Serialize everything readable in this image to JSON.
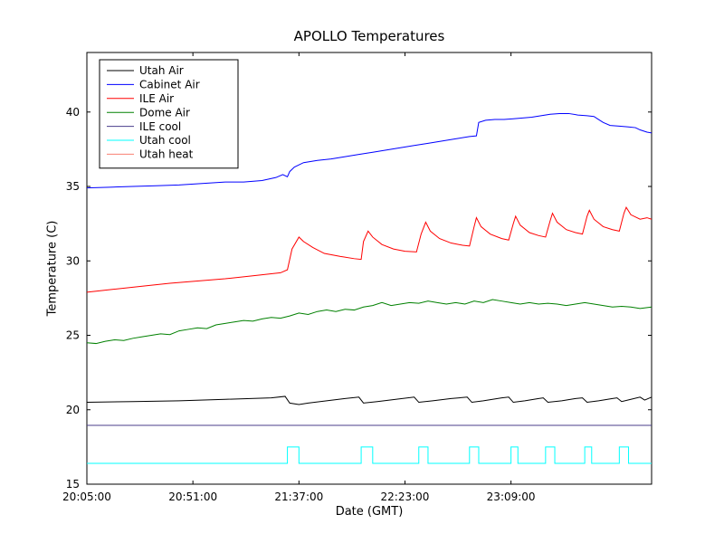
{
  "figure": {
    "title": "APOLLO Temperatures",
    "xlabel": "Date (GMT)",
    "ylabel": "Temperature (C)"
  },
  "chart_data": {
    "type": "line",
    "title": "APOLLO Temperatures",
    "xlabel": "Date (GMT)",
    "ylabel": "Temperature (C)",
    "x_unit": "minutes after 20:05:00",
    "xlim": [
      0,
      245
    ],
    "ylim": [
      15,
      44
    ],
    "xticks": [
      {
        "value": 0,
        "label": "20:05:00"
      },
      {
        "value": 46,
        "label": "20:51:00"
      },
      {
        "value": 92,
        "label": "21:37:00"
      },
      {
        "value": 138,
        "label": "22:23:00"
      },
      {
        "value": 184,
        "label": "23:09:00"
      }
    ],
    "yticks": [
      15,
      20,
      25,
      30,
      35,
      40
    ],
    "grid": false,
    "legend_position": "upper-left",
    "series": [
      {
        "name": "Utah Air",
        "color": "#000000",
        "points": [
          [
            0,
            20.5
          ],
          [
            20,
            20.55
          ],
          [
            40,
            20.6
          ],
          [
            60,
            20.7
          ],
          [
            80,
            20.8
          ],
          [
            86,
            20.9
          ],
          [
            88,
            20.45
          ],
          [
            92,
            20.35
          ],
          [
            96,
            20.45
          ],
          [
            104,
            20.6
          ],
          [
            112,
            20.75
          ],
          [
            118,
            20.85
          ],
          [
            120,
            20.45
          ],
          [
            126,
            20.55
          ],
          [
            134,
            20.7
          ],
          [
            142,
            20.85
          ],
          [
            144,
            20.5
          ],
          [
            150,
            20.6
          ],
          [
            158,
            20.75
          ],
          [
            165,
            20.85
          ],
          [
            167,
            20.5
          ],
          [
            172,
            20.6
          ],
          [
            180,
            20.8
          ],
          [
            183,
            20.85
          ],
          [
            185,
            20.5
          ],
          [
            190,
            20.6
          ],
          [
            196,
            20.75
          ],
          [
            198,
            20.8
          ],
          [
            200,
            20.5
          ],
          [
            206,
            20.6
          ],
          [
            212,
            20.75
          ],
          [
            215,
            20.8
          ],
          [
            217,
            20.5
          ],
          [
            222,
            20.6
          ],
          [
            228,
            20.75
          ],
          [
            230,
            20.8
          ],
          [
            232,
            20.55
          ],
          [
            236,
            20.7
          ],
          [
            240,
            20.85
          ],
          [
            242,
            20.65
          ],
          [
            245,
            20.85
          ]
        ]
      },
      {
        "name": "Cabinet Air",
        "color": "#0000ff",
        "points": [
          [
            0,
            34.9
          ],
          [
            10,
            34.95
          ],
          [
            20,
            35.0
          ],
          [
            30,
            35.05
          ],
          [
            40,
            35.1
          ],
          [
            50,
            35.2
          ],
          [
            60,
            35.3
          ],
          [
            68,
            35.3
          ],
          [
            76,
            35.4
          ],
          [
            82,
            35.6
          ],
          [
            85,
            35.8
          ],
          [
            87,
            35.65
          ],
          [
            88,
            36.0
          ],
          [
            90,
            36.3
          ],
          [
            94,
            36.6
          ],
          [
            100,
            36.75
          ],
          [
            106,
            36.85
          ],
          [
            112,
            37.0
          ],
          [
            118,
            37.15
          ],
          [
            124,
            37.3
          ],
          [
            130,
            37.45
          ],
          [
            136,
            37.6
          ],
          [
            142,
            37.75
          ],
          [
            148,
            37.9
          ],
          [
            154,
            38.05
          ],
          [
            160,
            38.2
          ],
          [
            166,
            38.35
          ],
          [
            169,
            38.4
          ],
          [
            170,
            39.3
          ],
          [
            173,
            39.45
          ],
          [
            177,
            39.5
          ],
          [
            181,
            39.5
          ],
          [
            185,
            39.55
          ],
          [
            189,
            39.6
          ],
          [
            193,
            39.65
          ],
          [
            197,
            39.75
          ],
          [
            201,
            39.85
          ],
          [
            205,
            39.9
          ],
          [
            209,
            39.9
          ],
          [
            213,
            39.8
          ],
          [
            217,
            39.75
          ],
          [
            220,
            39.7
          ],
          [
            222,
            39.5
          ],
          [
            224,
            39.3
          ],
          [
            227,
            39.1
          ],
          [
            231,
            39.05
          ],
          [
            235,
            39.0
          ],
          [
            238,
            38.95
          ],
          [
            240,
            38.8
          ],
          [
            243,
            38.65
          ],
          [
            245,
            38.6
          ]
        ]
      },
      {
        "name": "ILE Air",
        "color": "#ff0000",
        "points": [
          [
            0,
            27.9
          ],
          [
            12,
            28.1
          ],
          [
            24,
            28.3
          ],
          [
            36,
            28.5
          ],
          [
            48,
            28.65
          ],
          [
            60,
            28.8
          ],
          [
            72,
            29.0
          ],
          [
            84,
            29.2
          ],
          [
            87,
            29.4
          ],
          [
            89,
            30.8
          ],
          [
            92,
            31.6
          ],
          [
            94,
            31.3
          ],
          [
            98,
            30.9
          ],
          [
            103,
            30.5
          ],
          [
            110,
            30.3
          ],
          [
            116,
            30.15
          ],
          [
            119,
            30.1
          ],
          [
            120,
            31.3
          ],
          [
            122,
            32.0
          ],
          [
            124,
            31.6
          ],
          [
            128,
            31.1
          ],
          [
            133,
            30.8
          ],
          [
            138,
            30.65
          ],
          [
            143,
            30.6
          ],
          [
            145,
            31.8
          ],
          [
            147,
            32.6
          ],
          [
            149,
            32.0
          ],
          [
            153,
            31.5
          ],
          [
            158,
            31.2
          ],
          [
            163,
            31.05
          ],
          [
            166,
            31.0
          ],
          [
            168,
            32.3
          ],
          [
            169,
            32.9
          ],
          [
            171,
            32.3
          ],
          [
            175,
            31.8
          ],
          [
            180,
            31.5
          ],
          [
            183,
            31.4
          ],
          [
            185,
            32.5
          ],
          [
            186,
            33.0
          ],
          [
            188,
            32.4
          ],
          [
            192,
            31.9
          ],
          [
            196,
            31.7
          ],
          [
            199,
            31.6
          ],
          [
            201,
            32.7
          ],
          [
            202,
            33.2
          ],
          [
            204,
            32.6
          ],
          [
            208,
            32.1
          ],
          [
            212,
            31.9
          ],
          [
            215,
            31.8
          ],
          [
            217,
            33.0
          ],
          [
            218,
            33.4
          ],
          [
            220,
            32.8
          ],
          [
            224,
            32.3
          ],
          [
            228,
            32.1
          ],
          [
            231,
            32.0
          ],
          [
            233,
            33.2
          ],
          [
            234,
            33.6
          ],
          [
            236,
            33.1
          ],
          [
            240,
            32.8
          ],
          [
            243,
            32.9
          ],
          [
            245,
            32.8
          ]
        ]
      },
      {
        "name": "Dome Air",
        "color": "#008000",
        "points": [
          [
            0,
            24.5
          ],
          [
            4,
            24.45
          ],
          [
            8,
            24.6
          ],
          [
            12,
            24.7
          ],
          [
            16,
            24.65
          ],
          [
            20,
            24.8
          ],
          [
            24,
            24.9
          ],
          [
            28,
            25.0
          ],
          [
            32,
            25.1
          ],
          [
            36,
            25.05
          ],
          [
            40,
            25.3
          ],
          [
            44,
            25.4
          ],
          [
            48,
            25.5
          ],
          [
            52,
            25.45
          ],
          [
            56,
            25.7
          ],
          [
            60,
            25.8
          ],
          [
            64,
            25.9
          ],
          [
            68,
            26.0
          ],
          [
            72,
            25.95
          ],
          [
            76,
            26.1
          ],
          [
            80,
            26.2
          ],
          [
            84,
            26.15
          ],
          [
            88,
            26.3
          ],
          [
            92,
            26.5
          ],
          [
            96,
            26.4
          ],
          [
            100,
            26.6
          ],
          [
            104,
            26.7
          ],
          [
            108,
            26.6
          ],
          [
            112,
            26.75
          ],
          [
            116,
            26.7
          ],
          [
            120,
            26.9
          ],
          [
            124,
            27.0
          ],
          [
            128,
            27.2
          ],
          [
            132,
            27.0
          ],
          [
            136,
            27.1
          ],
          [
            140,
            27.2
          ],
          [
            144,
            27.15
          ],
          [
            148,
            27.3
          ],
          [
            152,
            27.2
          ],
          [
            156,
            27.1
          ],
          [
            160,
            27.2
          ],
          [
            164,
            27.1
          ],
          [
            168,
            27.3
          ],
          [
            172,
            27.2
          ],
          [
            176,
            27.4
          ],
          [
            180,
            27.3
          ],
          [
            184,
            27.2
          ],
          [
            188,
            27.1
          ],
          [
            192,
            27.2
          ],
          [
            196,
            27.1
          ],
          [
            200,
            27.15
          ],
          [
            204,
            27.1
          ],
          [
            208,
            27.0
          ],
          [
            212,
            27.1
          ],
          [
            216,
            27.2
          ],
          [
            220,
            27.1
          ],
          [
            224,
            27.0
          ],
          [
            228,
            26.9
          ],
          [
            232,
            26.95
          ],
          [
            236,
            26.9
          ],
          [
            240,
            26.8
          ],
          [
            245,
            26.9
          ]
        ]
      },
      {
        "name": "ILE cool",
        "color": "#483d8b",
        "points": [
          [
            0,
            18.95
          ],
          [
            245,
            18.95
          ]
        ]
      },
      {
        "name": "Utah cool",
        "color": "#00ffff",
        "points": [
          [
            0,
            16.4
          ],
          [
            87,
            16.4
          ],
          [
            87,
            17.5
          ],
          [
            92,
            17.5
          ],
          [
            92,
            16.4
          ],
          [
            119,
            16.4
          ],
          [
            119,
            17.5
          ],
          [
            124,
            17.5
          ],
          [
            124,
            16.4
          ],
          [
            144,
            16.4
          ],
          [
            144,
            17.5
          ],
          [
            148,
            17.5
          ],
          [
            148,
            16.4
          ],
          [
            166,
            16.4
          ],
          [
            166,
            17.5
          ],
          [
            170,
            17.5
          ],
          [
            170,
            16.4
          ],
          [
            184,
            16.4
          ],
          [
            184,
            17.5
          ],
          [
            187,
            17.5
          ],
          [
            187,
            16.4
          ],
          [
            199,
            16.4
          ],
          [
            199,
            17.5
          ],
          [
            203,
            17.5
          ],
          [
            203,
            16.4
          ],
          [
            216,
            16.4
          ],
          [
            216,
            17.5
          ],
          [
            219,
            17.5
          ],
          [
            219,
            16.4
          ],
          [
            231,
            16.4
          ],
          [
            231,
            17.5
          ],
          [
            235,
            17.5
          ],
          [
            235,
            16.4
          ],
          [
            245,
            16.4
          ]
        ]
      },
      {
        "name": "Utah heat",
        "color": "#fa8072",
        "points": []
      }
    ]
  }
}
